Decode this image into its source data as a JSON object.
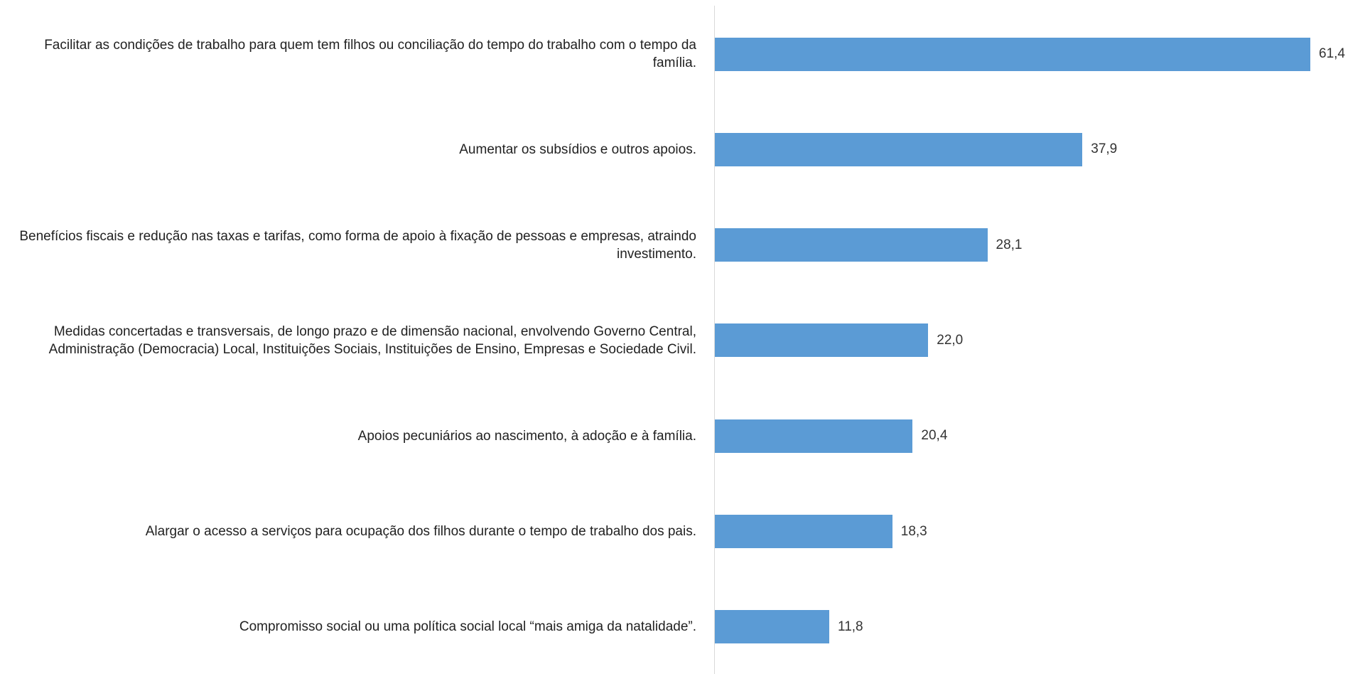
{
  "chart_data": {
    "type": "bar",
    "orientation": "horizontal",
    "categories": [
      "Facilitar as condições de trabalho para quem tem filhos ou conciliação do tempo do trabalho com o tempo da família.",
      "Aumentar os subsídios e outros apoios.",
      "Benefícios fiscais e redução nas taxas e tarifas, como forma de apoio à fixação de pessoas e empresas, atraindo investimento.",
      "Medidas concertadas e transversais, de longo prazo e de dimensão nacional, envolvendo Governo Central, Administração (Democracia) Local, Instituições Sociais, Instituições de Ensino, Empresas e Sociedade Civil.",
      "Apoios pecuniários ao nascimento, à adoção e à família.",
      "Alargar o acesso a serviços para ocupação dos filhos durante o tempo de trabalho dos pais.",
      "Compromisso social ou uma política social local “mais amiga da natalidade”."
    ],
    "values": [
      61.4,
      37.9,
      28.1,
      22.0,
      20.4,
      18.3,
      11.8
    ],
    "value_labels": [
      "61,4",
      "37,9",
      "28,1",
      "22,0",
      "20,4",
      "18,3",
      "11,8"
    ],
    "color": "#5b9bd5"
  }
}
